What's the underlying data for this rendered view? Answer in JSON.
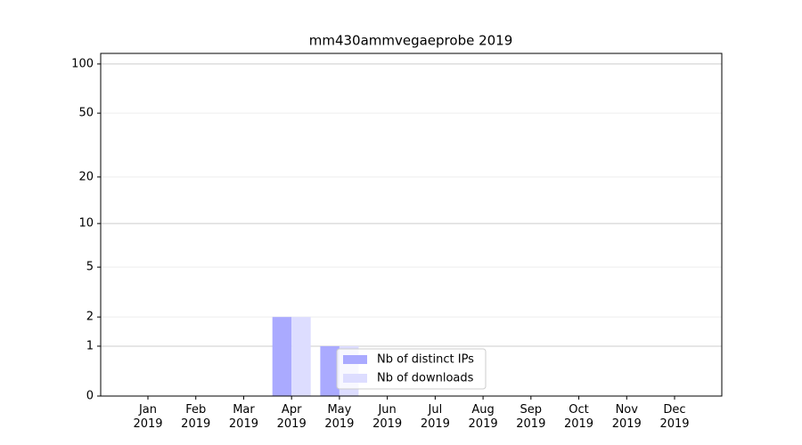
{
  "chart_data": {
    "type": "bar",
    "title": "mm430ammvegaeprobe 2019",
    "categories": [
      "Jan\n2019",
      "Feb\n2019",
      "Mar\n2019",
      "Apr\n2019",
      "May\n2019",
      "Jun\n2019",
      "Jul\n2019",
      "Aug\n2019",
      "Sep\n2019",
      "Oct\n2019",
      "Nov\n2019",
      "Dec\n2019"
    ],
    "series": [
      {
        "name": "Nb of distinct IPs",
        "color": "#aaaaff",
        "values": [
          0,
          0,
          0,
          2,
          1,
          0,
          0,
          0,
          0,
          0,
          0,
          0
        ]
      },
      {
        "name": "Nb of downloads",
        "color": "#ddddff",
        "values": [
          0,
          0,
          0,
          2,
          1,
          0,
          0,
          0,
          0,
          0,
          0,
          0
        ]
      }
    ],
    "yscale": "log1p",
    "ylim": [
      0,
      116
    ],
    "yticks": [
      0,
      1,
      2,
      5,
      10,
      20,
      50,
      100
    ],
    "grid": true,
    "legend": "lower center"
  }
}
